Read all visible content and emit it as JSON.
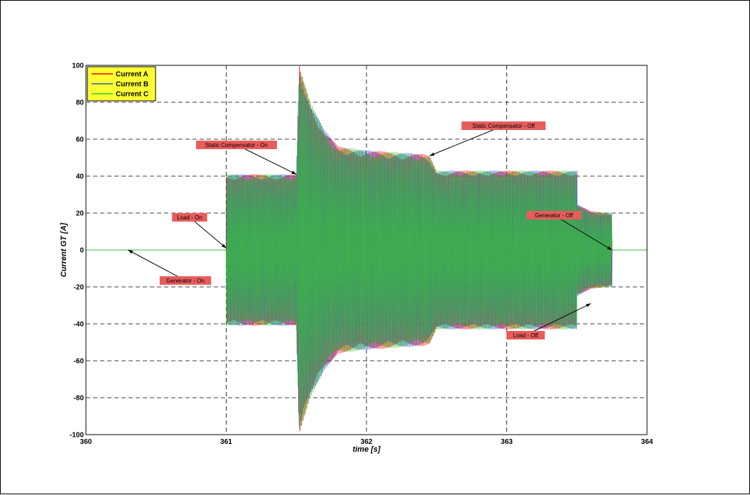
{
  "chart_data": {
    "type": "line",
    "xlabel": "time [s]",
    "ylabel": "Current GT [A]",
    "xlim": [
      360,
      364
    ],
    "ylim": [
      -100,
      100
    ],
    "xticks": [
      "360",
      "361",
      "362",
      "363",
      "364"
    ],
    "yticks": [
      "100",
      "80",
      "60",
      "40",
      "20",
      "0",
      "-20",
      "-40",
      "-60",
      "-80",
      "-100"
    ],
    "grid": true,
    "legend_position": "top-left",
    "series": [
      {
        "name": "Current A",
        "color": "#ff0000"
      },
      {
        "name": "Current B",
        "color": "#3355cc"
      },
      {
        "name": "Current C",
        "color": "#33cc33"
      }
    ],
    "envelope": {
      "description_points_x": [
        360.0,
        361.0,
        361.0,
        361.5,
        361.52,
        361.6,
        361.7,
        361.8,
        362.0,
        362.4,
        362.45,
        362.5,
        363.5,
        363.5,
        363.6,
        363.75,
        363.75,
        364.0
      ],
      "amplitude": [
        0,
        0,
        41,
        41,
        100,
        80,
        65,
        56,
        54,
        52,
        51,
        43,
        43,
        25,
        21,
        20,
        0,
        0
      ]
    },
    "annotations": [
      {
        "text": "Generator - On",
        "x": 360.3,
        "y": 0
      },
      {
        "text": "Load - On",
        "x": 361.0,
        "y": 1
      },
      {
        "text": "Static Compensator - On",
        "x": 361.5,
        "y": 41
      },
      {
        "text": "Static Compensator - Off",
        "x": 362.45,
        "y": 51
      },
      {
        "text": "Generator - Off",
        "x": 363.75,
        "y": 0
      },
      {
        "text": "Load - Off",
        "x": 363.6,
        "y": -29
      }
    ]
  }
}
